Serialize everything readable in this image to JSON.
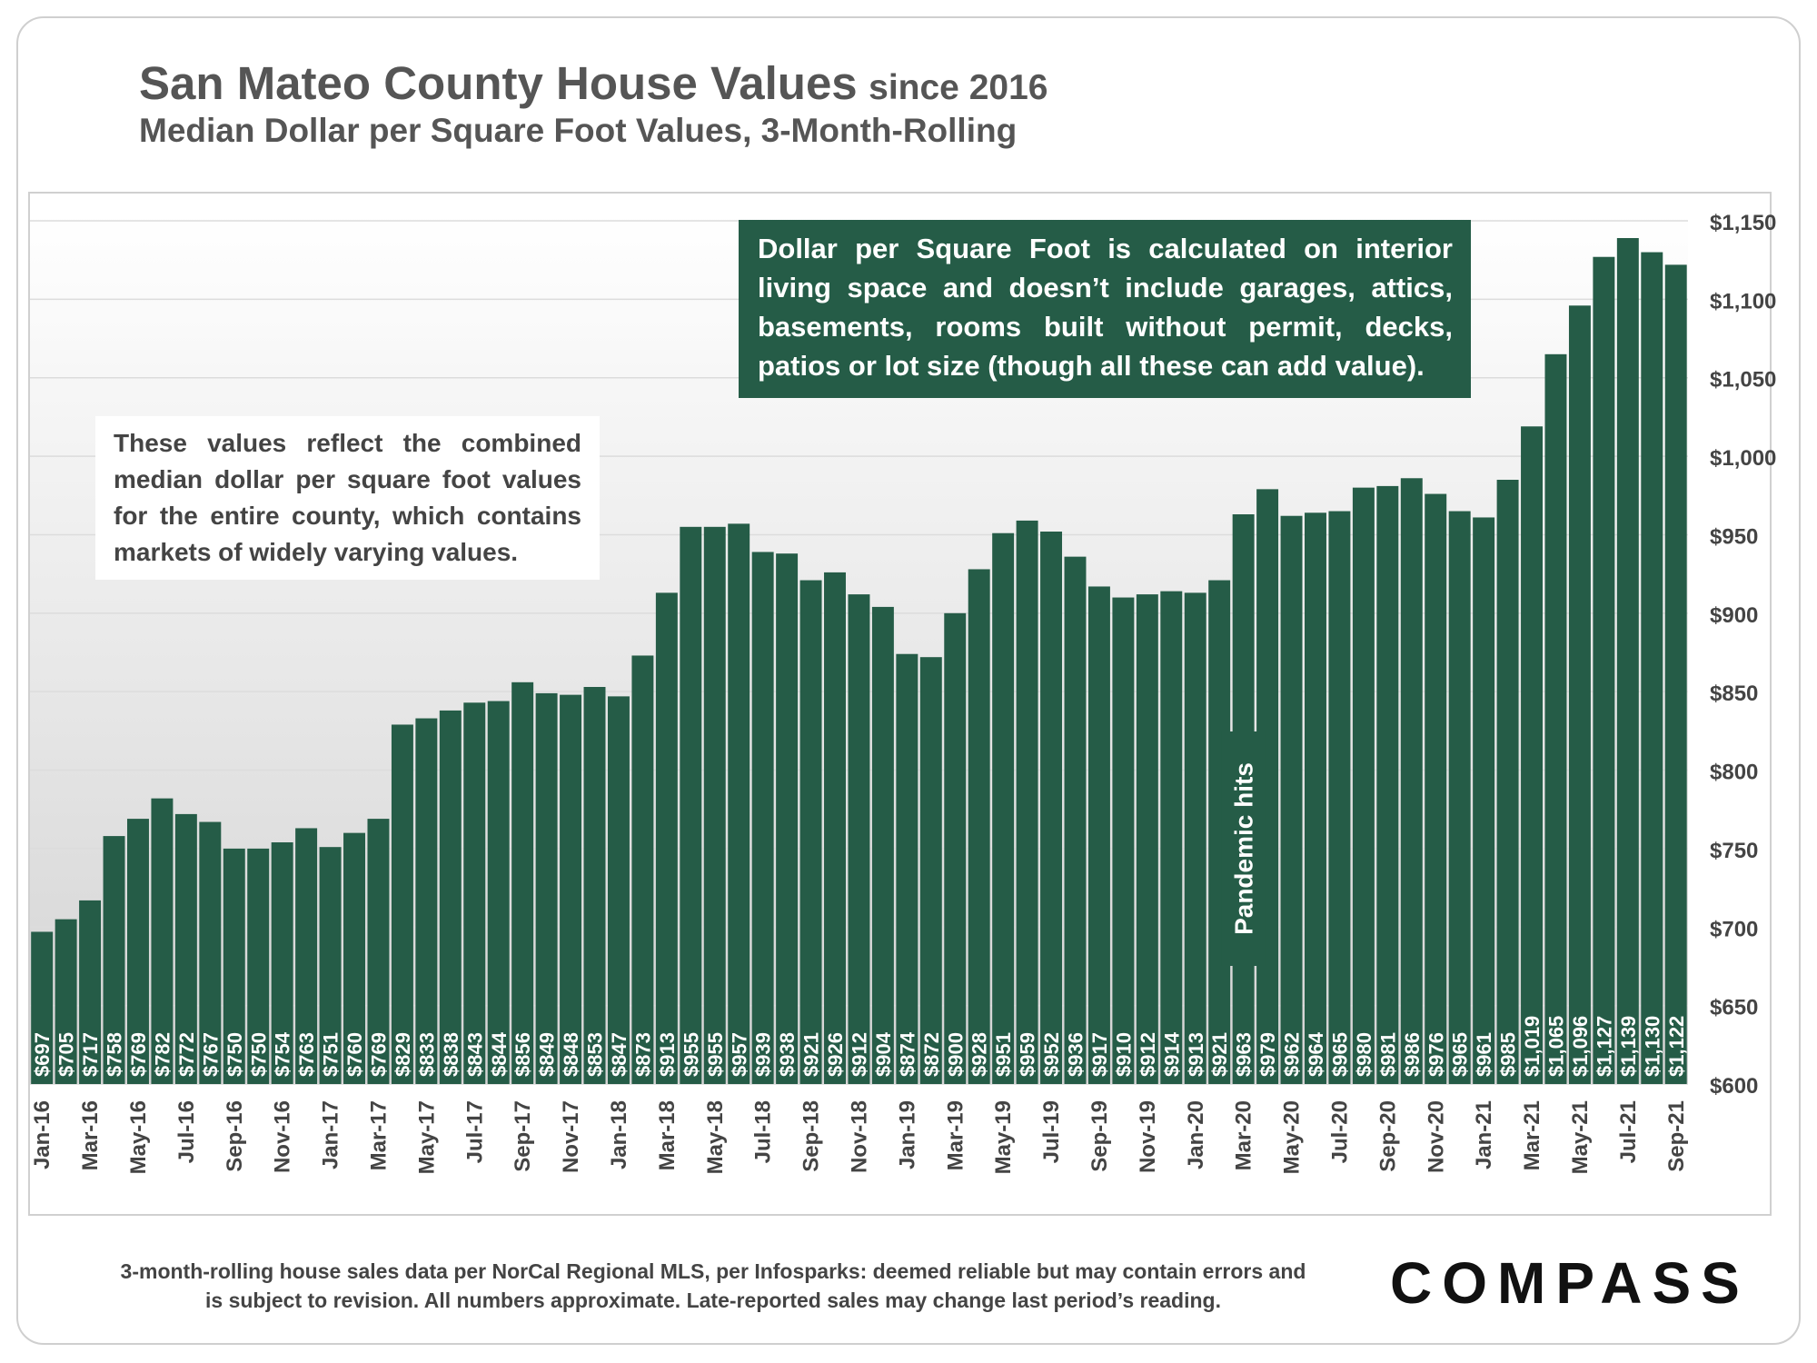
{
  "header": {
    "title": "San Mateo County House Values",
    "title_suffix": "since 2016",
    "subtitle": "Median Dollar per Square Foot Values, 3-Month-Rolling"
  },
  "notes": {
    "left": "These values reflect the combined median dollar per square foot values for the entire county, which contains markets of widely varying values.",
    "right": "Dollar per Square Foot is calculated on interior living space and doesn’t include garages, attics, basements, rooms built without permit, decks, patios or lot size (though all these can add value).",
    "pandemic": "Pandemic hits"
  },
  "footer": {
    "footnote": "3-month-rolling house sales data per NorCal Regional MLS, per Infosparks:  deemed reliable but may contain errors and is subject to revision. All numbers approximate. Late-reported sales may change last period’s reading.",
    "logo": "COMPASS"
  },
  "colors": {
    "bar": "#255c47",
    "text": "#444444",
    "grid": "#dcdcdc"
  },
  "chart_data": {
    "type": "bar",
    "title": "San Mateo County House Values since 2016",
    "subtitle": "Median Dollar per Square Foot Values, 3-Month-Rolling",
    "ylim": [
      600,
      1150
    ],
    "y_axis_position": "right",
    "y_ticks": [
      600,
      650,
      700,
      750,
      800,
      850,
      900,
      950,
      1000,
      1050,
      1100,
      1150
    ],
    "y_tick_labels": [
      "$600",
      "$650",
      "$700",
      "$750",
      "$800",
      "$850",
      "$900",
      "$950",
      "$1,000",
      "$1,050",
      "$1,100",
      "$1,150"
    ],
    "x_tick_labels": [
      "Jan-16",
      "Mar-16",
      "May-16",
      "Jul-16",
      "Sep-16",
      "Nov-16",
      "Jan-17",
      "Mar-17",
      "May-17",
      "Jul-17",
      "Sep-17",
      "Nov-17",
      "Jan-18",
      "Mar-18",
      "May-18",
      "Jul-18",
      "Sep-18",
      "Nov-18",
      "Jan-19",
      "Mar-19",
      "May-19",
      "Jul-19",
      "Sep-19",
      "Nov-19",
      "Jan-20",
      "Mar-20",
      "May-20",
      "Jul-20",
      "Sep-20",
      "Nov-20",
      "Jan-21",
      "Mar-21",
      "May-21",
      "Jul-21",
      "Sep-21"
    ],
    "values": [
      697,
      705,
      717,
      758,
      769,
      782,
      772,
      767,
      750,
      750,
      754,
      763,
      751,
      760,
      769,
      829,
      833,
      838,
      843,
      844,
      856,
      849,
      848,
      853,
      847,
      873,
      913,
      955,
      955,
      957,
      939,
      938,
      921,
      926,
      912,
      904,
      874,
      872,
      900,
      928,
      951,
      959,
      952,
      936,
      917,
      910,
      912,
      914,
      913,
      921,
      963,
      979,
      962,
      964,
      965,
      980,
      981,
      986,
      976,
      965,
      961,
      985,
      1019,
      1065,
      1096,
      1127,
      1139,
      1130,
      1122
    ],
    "value_labels": [
      "$697",
      "$705",
      "$717",
      "$758",
      "$769",
      "$782",
      "$772",
      "$767",
      "$750",
      "$750",
      "$754",
      "$763",
      "$751",
      "$760",
      "$769",
      "$829",
      "$833",
      "$838",
      "$843",
      "$844",
      "$856",
      "$849",
      "$848",
      "$853",
      "$847",
      "$873",
      "$913",
      "$955",
      "$955",
      "$957",
      "$939",
      "$938",
      "$921",
      "$926",
      "$912",
      "$904",
      "$874",
      "$872",
      "$900",
      "$928",
      "$951",
      "$959",
      "$952",
      "$936",
      "$917",
      "$910",
      "$912",
      "$914",
      "$913",
      "$921",
      "$963",
      "$979",
      "$962",
      "$964",
      "$965",
      "$980",
      "$981",
      "$986",
      "$976",
      "$965",
      "$961",
      "$985",
      "$1,019",
      "$1,065",
      "$1,096",
      "$1,127",
      "$1,139",
      "$1,130",
      "$1,122"
    ],
    "annotation_index": 50,
    "grid": true,
    "legend": "none"
  }
}
